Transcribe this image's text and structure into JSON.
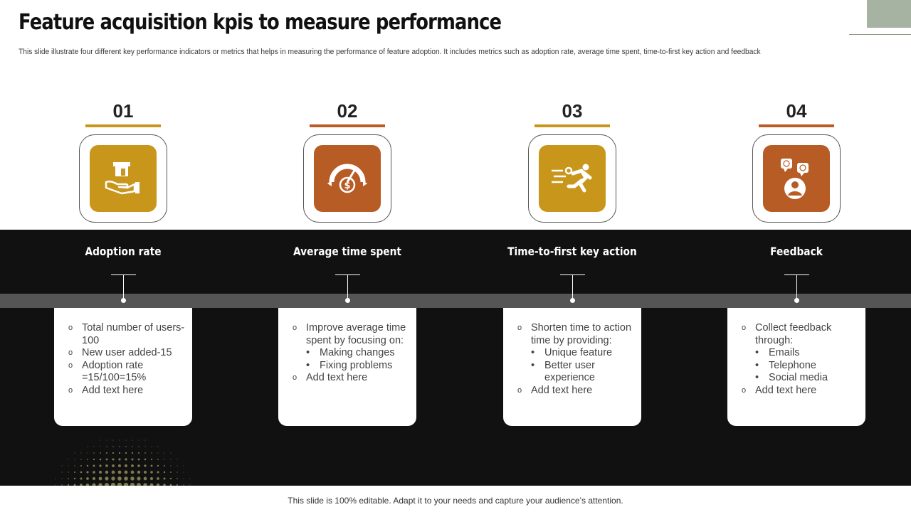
{
  "title": "Feature acquisition kpis to measure performance",
  "subtitle": "This slide illustrate four different key performance indicators or metrics that helps in measuring the performance of feature adoption. It includes metrics such as adoption rate, average time spent, time-to-first key action and feedback",
  "footer": "This slide is 100% editable. Adapt it to your needs and capture your audience’s attention.",
  "colors": {
    "gold": "#c9961c",
    "copper": "#b85c25",
    "dark": "#111111",
    "band": "#555555",
    "deco": "#a7b3a2"
  },
  "kpis": [
    {
      "number": "01",
      "label": "Adoption rate",
      "icon": "hand-holding-box-icon",
      "color": "#c9961c",
      "bullets": [
        {
          "text": "Total number of users-100"
        },
        {
          "text": "New user added-15"
        },
        {
          "text": "Adoption rate =15/100=15%"
        },
        {
          "text": "Add text here"
        }
      ]
    },
    {
      "number": "02",
      "label": "Average time spent",
      "icon": "dollar-gauge-icon",
      "color": "#b85c25",
      "bullets": [
        {
          "text": "Improve average time spent by focusing on:",
          "sub": [
            "Making changes",
            "Fixing problems"
          ]
        },
        {
          "text": "Add text here"
        }
      ]
    },
    {
      "number": "03",
      "label": "Time-to-first key action",
      "icon": "running-person-icon",
      "color": "#c9961c",
      "bullets": [
        {
          "text": "Shorten time to action time by providing:",
          "sub": [
            "Unique feature",
            "Better user experience"
          ]
        },
        {
          "text": "Add text here"
        }
      ]
    },
    {
      "number": "04",
      "label": "Feedback",
      "icon": "feedback-person-icon",
      "color": "#b85c25",
      "bullets": [
        {
          "text": "Collect feedback through:",
          "sub": [
            "Emails",
            "Telephone",
            "Social media"
          ]
        },
        {
          "text": "Add text here"
        }
      ]
    }
  ]
}
